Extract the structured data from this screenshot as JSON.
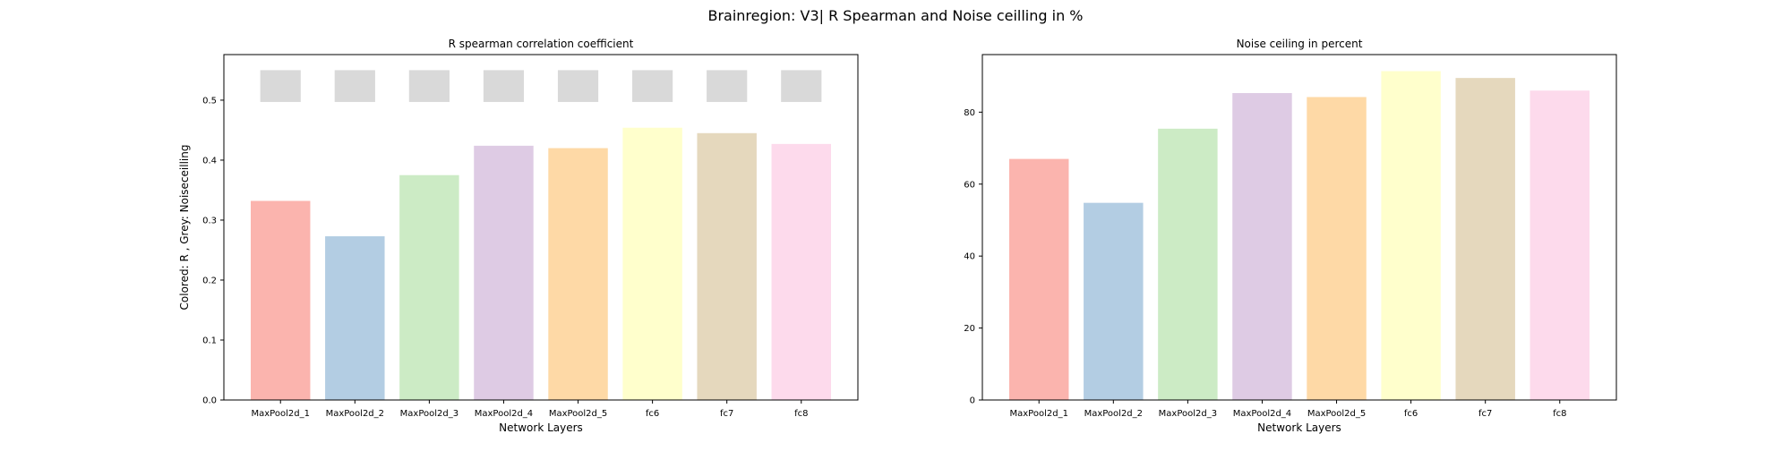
{
  "suptitle": "Brainregion: V3| R Spearman and Noise ceilling in %",
  "chart_data": [
    {
      "type": "bar",
      "title": "R spearman correlation coefficient",
      "xlabel": "Network Layers",
      "ylabel": "Colored: R , Grey: Noiseceilling",
      "categories": [
        "MaxPool2d_1",
        "MaxPool2d_2",
        "MaxPool2d_3",
        "MaxPool2d_4",
        "MaxPool2d_5",
        "fc6",
        "fc7",
        "fc8"
      ],
      "series": [
        {
          "values": [
            0.332,
            0.273,
            0.375,
            0.424,
            0.42,
            0.454,
            0.445,
            0.427
          ],
          "colors": [
            "#fbb4ae",
            "#b3cde3",
            "#ccebc5",
            "#decbe4",
            "#fed9a6",
            "#ffffcc",
            "#e5d8bd",
            "#fddaec"
          ]
        },
        {
          "kind": "noise-ceiling-band",
          "lower": [
            0.497,
            0.497,
            0.497,
            0.497,
            0.497,
            0.497,
            0.497,
            0.497
          ],
          "upper": [
            0.55,
            0.55,
            0.55,
            0.55,
            0.55,
            0.55,
            0.55,
            0.55
          ],
          "color": "#d9d9d9"
        }
      ],
      "ylim": [
        0,
        0.576
      ],
      "yticks": [
        0.0,
        0.1,
        0.2,
        0.3,
        0.4,
        0.5
      ],
      "ytick_labels": [
        "0.0",
        "0.1",
        "0.2",
        "0.3",
        "0.4",
        "0.5"
      ],
      "grid": false
    },
    {
      "type": "bar",
      "title": "Noise ceiling in percent",
      "xlabel": "Network Layers",
      "ylabel": "",
      "categories": [
        "MaxPool2d_1",
        "MaxPool2d_2",
        "MaxPool2d_3",
        "MaxPool2d_4",
        "MaxPool2d_5",
        "fc6",
        "fc7",
        "fc8"
      ],
      "series": [
        {
          "values": [
            67.0,
            54.8,
            75.4,
            85.3,
            84.2,
            91.4,
            89.5,
            86.0
          ],
          "colors": [
            "#fbb4ae",
            "#b3cde3",
            "#ccebc5",
            "#decbe4",
            "#fed9a6",
            "#ffffcc",
            "#e5d8bd",
            "#fddaec"
          ]
        }
      ],
      "ylim": [
        0,
        96
      ],
      "yticks": [
        0,
        20,
        40,
        60,
        80
      ],
      "ytick_labels": [
        "0",
        "20",
        "40",
        "60",
        "80"
      ],
      "grid": false
    }
  ]
}
